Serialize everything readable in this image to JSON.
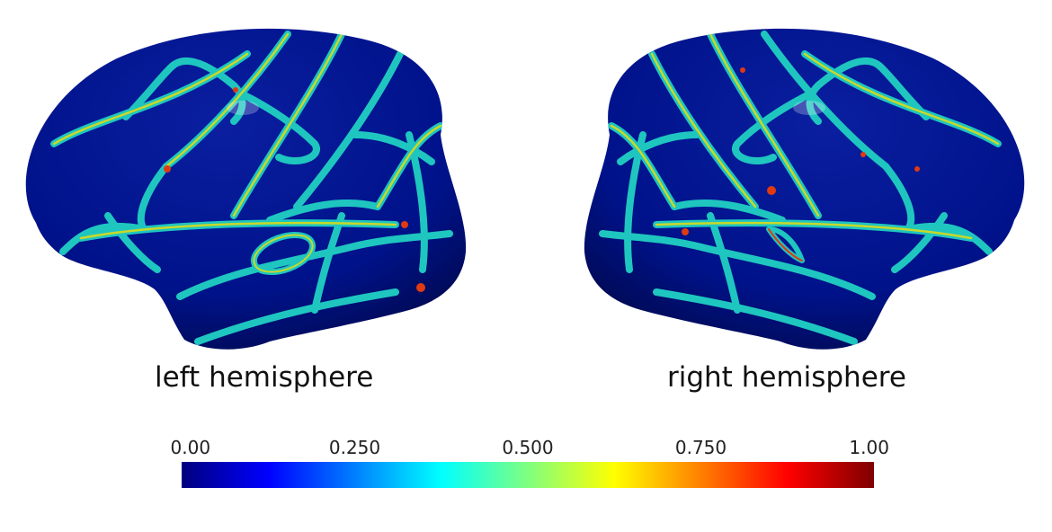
{
  "labels": {
    "left": "left hemisphere",
    "right": "right hemisphere"
  },
  "colorbar": {
    "colormap": "jet",
    "min": 0.0,
    "max": 1.0,
    "ticks": [
      {
        "value": 0.0,
        "label": "0.00"
      },
      {
        "value": 0.25,
        "label": "0.250"
      },
      {
        "value": 0.5,
        "label": "0.500"
      },
      {
        "value": 0.75,
        "label": "0.750"
      },
      {
        "value": 1.0,
        "label": "1.00"
      }
    ],
    "stops": [
      {
        "pos": 0.0,
        "color": "#00007f"
      },
      {
        "pos": 0.125,
        "color": "#0000ff"
      },
      {
        "pos": 0.375,
        "color": "#00ffff"
      },
      {
        "pos": 0.5,
        "color": "#7fff7f"
      },
      {
        "pos": 0.625,
        "color": "#ffff00"
      },
      {
        "pos": 0.875,
        "color": "#ff0000"
      },
      {
        "pos": 1.0,
        "color": "#7f0000"
      }
    ]
  },
  "colors": {
    "surface_base": "#00118a",
    "ridge_outer": "#19c3b8",
    "ridge_inner": "#c8d82a",
    "hotspot": "#e03a10"
  }
}
